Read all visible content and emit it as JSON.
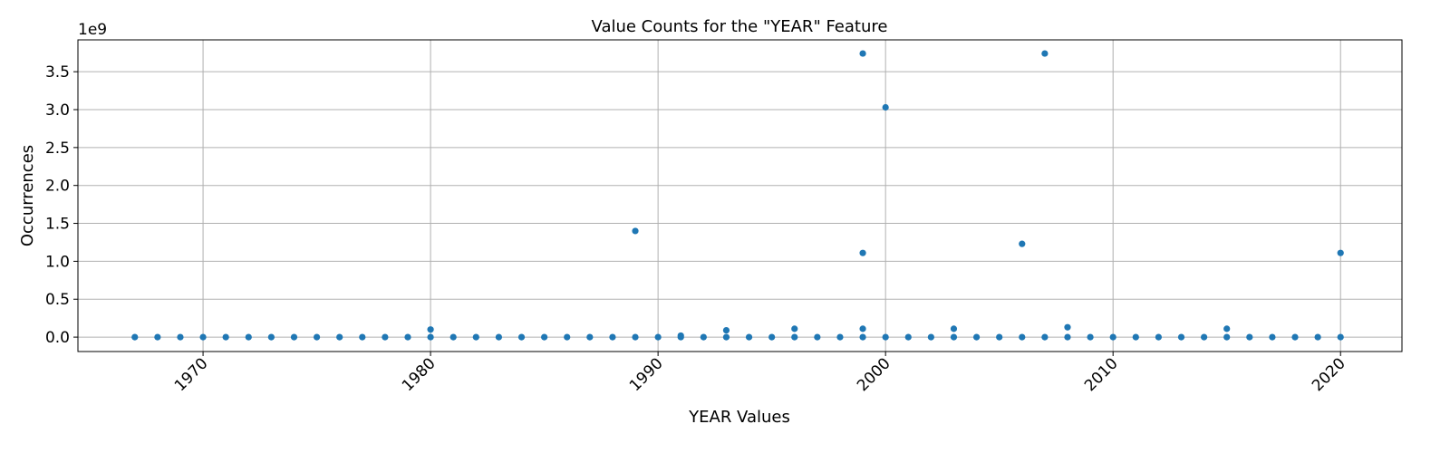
{
  "chart_data": {
    "type": "scatter",
    "title": "Value Counts for the \"YEAR\" Feature",
    "xlabel": "YEAR Values",
    "ylabel": "Occurrences",
    "y_offset_label": "1e9",
    "xlim": [
      1964.5,
      2022.7
    ],
    "ylim": [
      -0.19,
      3.92
    ],
    "x_ticks": [
      1970,
      1980,
      1990,
      2000,
      2010,
      2020
    ],
    "y_ticks": [
      0.0,
      0.5,
      1.0,
      1.5,
      2.0,
      2.5,
      3.0,
      3.5
    ],
    "y_tick_labels": [
      "0.0",
      "0.5",
      "1.0",
      "1.5",
      "2.0",
      "2.5",
      "3.0",
      "3.5"
    ],
    "grid": true,
    "color": "#1f77b4",
    "x": [
      1967,
      1968,
      1969,
      1970,
      1971,
      1972,
      1973,
      1974,
      1975,
      1976,
      1977,
      1978,
      1979,
      1980,
      1980,
      1981,
      1982,
      1983,
      1984,
      1985,
      1986,
      1987,
      1988,
      1989,
      1989,
      1990,
      1991,
      1991,
      1992,
      1993,
      1993,
      1994,
      1995,
      1996,
      1996,
      1997,
      1998,
      1999,
      1999,
      1999,
      1999,
      2000,
      2000,
      2001,
      2002,
      2003,
      2003,
      2004,
      2005,
      2006,
      2006,
      2007,
      2007,
      2008,
      2008,
      2009,
      2010,
      2011,
      2012,
      2013,
      2014,
      2015,
      2015,
      2016,
      2017,
      2018,
      2019,
      2020,
      2020
    ],
    "y": [
      0.0,
      0.0,
      0.0,
      0.0,
      0.0,
      0.0,
      0.0,
      0.0,
      0.0,
      0.0,
      0.0,
      0.0,
      0.0,
      0.0,
      0.1,
      0.0,
      0.0,
      0.0,
      0.0,
      0.0,
      0.0,
      0.0,
      0.0,
      0.0,
      1.4,
      0.0,
      0.0,
      0.02,
      0.0,
      0.0,
      0.09,
      0.0,
      0.0,
      0.0,
      0.11,
      0.0,
      0.0,
      0.0,
      0.11,
      1.11,
      3.74,
      0.0,
      3.03,
      0.0,
      0.0,
      0.0,
      0.11,
      0.0,
      0.0,
      0.0,
      1.23,
      0.0,
      3.74,
      0.0,
      0.13,
      0.0,
      0.0,
      0.0,
      0.0,
      0.0,
      0.0,
      0.0,
      0.11,
      0.0,
      0.0,
      0.0,
      0.0,
      0.0,
      1.11
    ]
  }
}
